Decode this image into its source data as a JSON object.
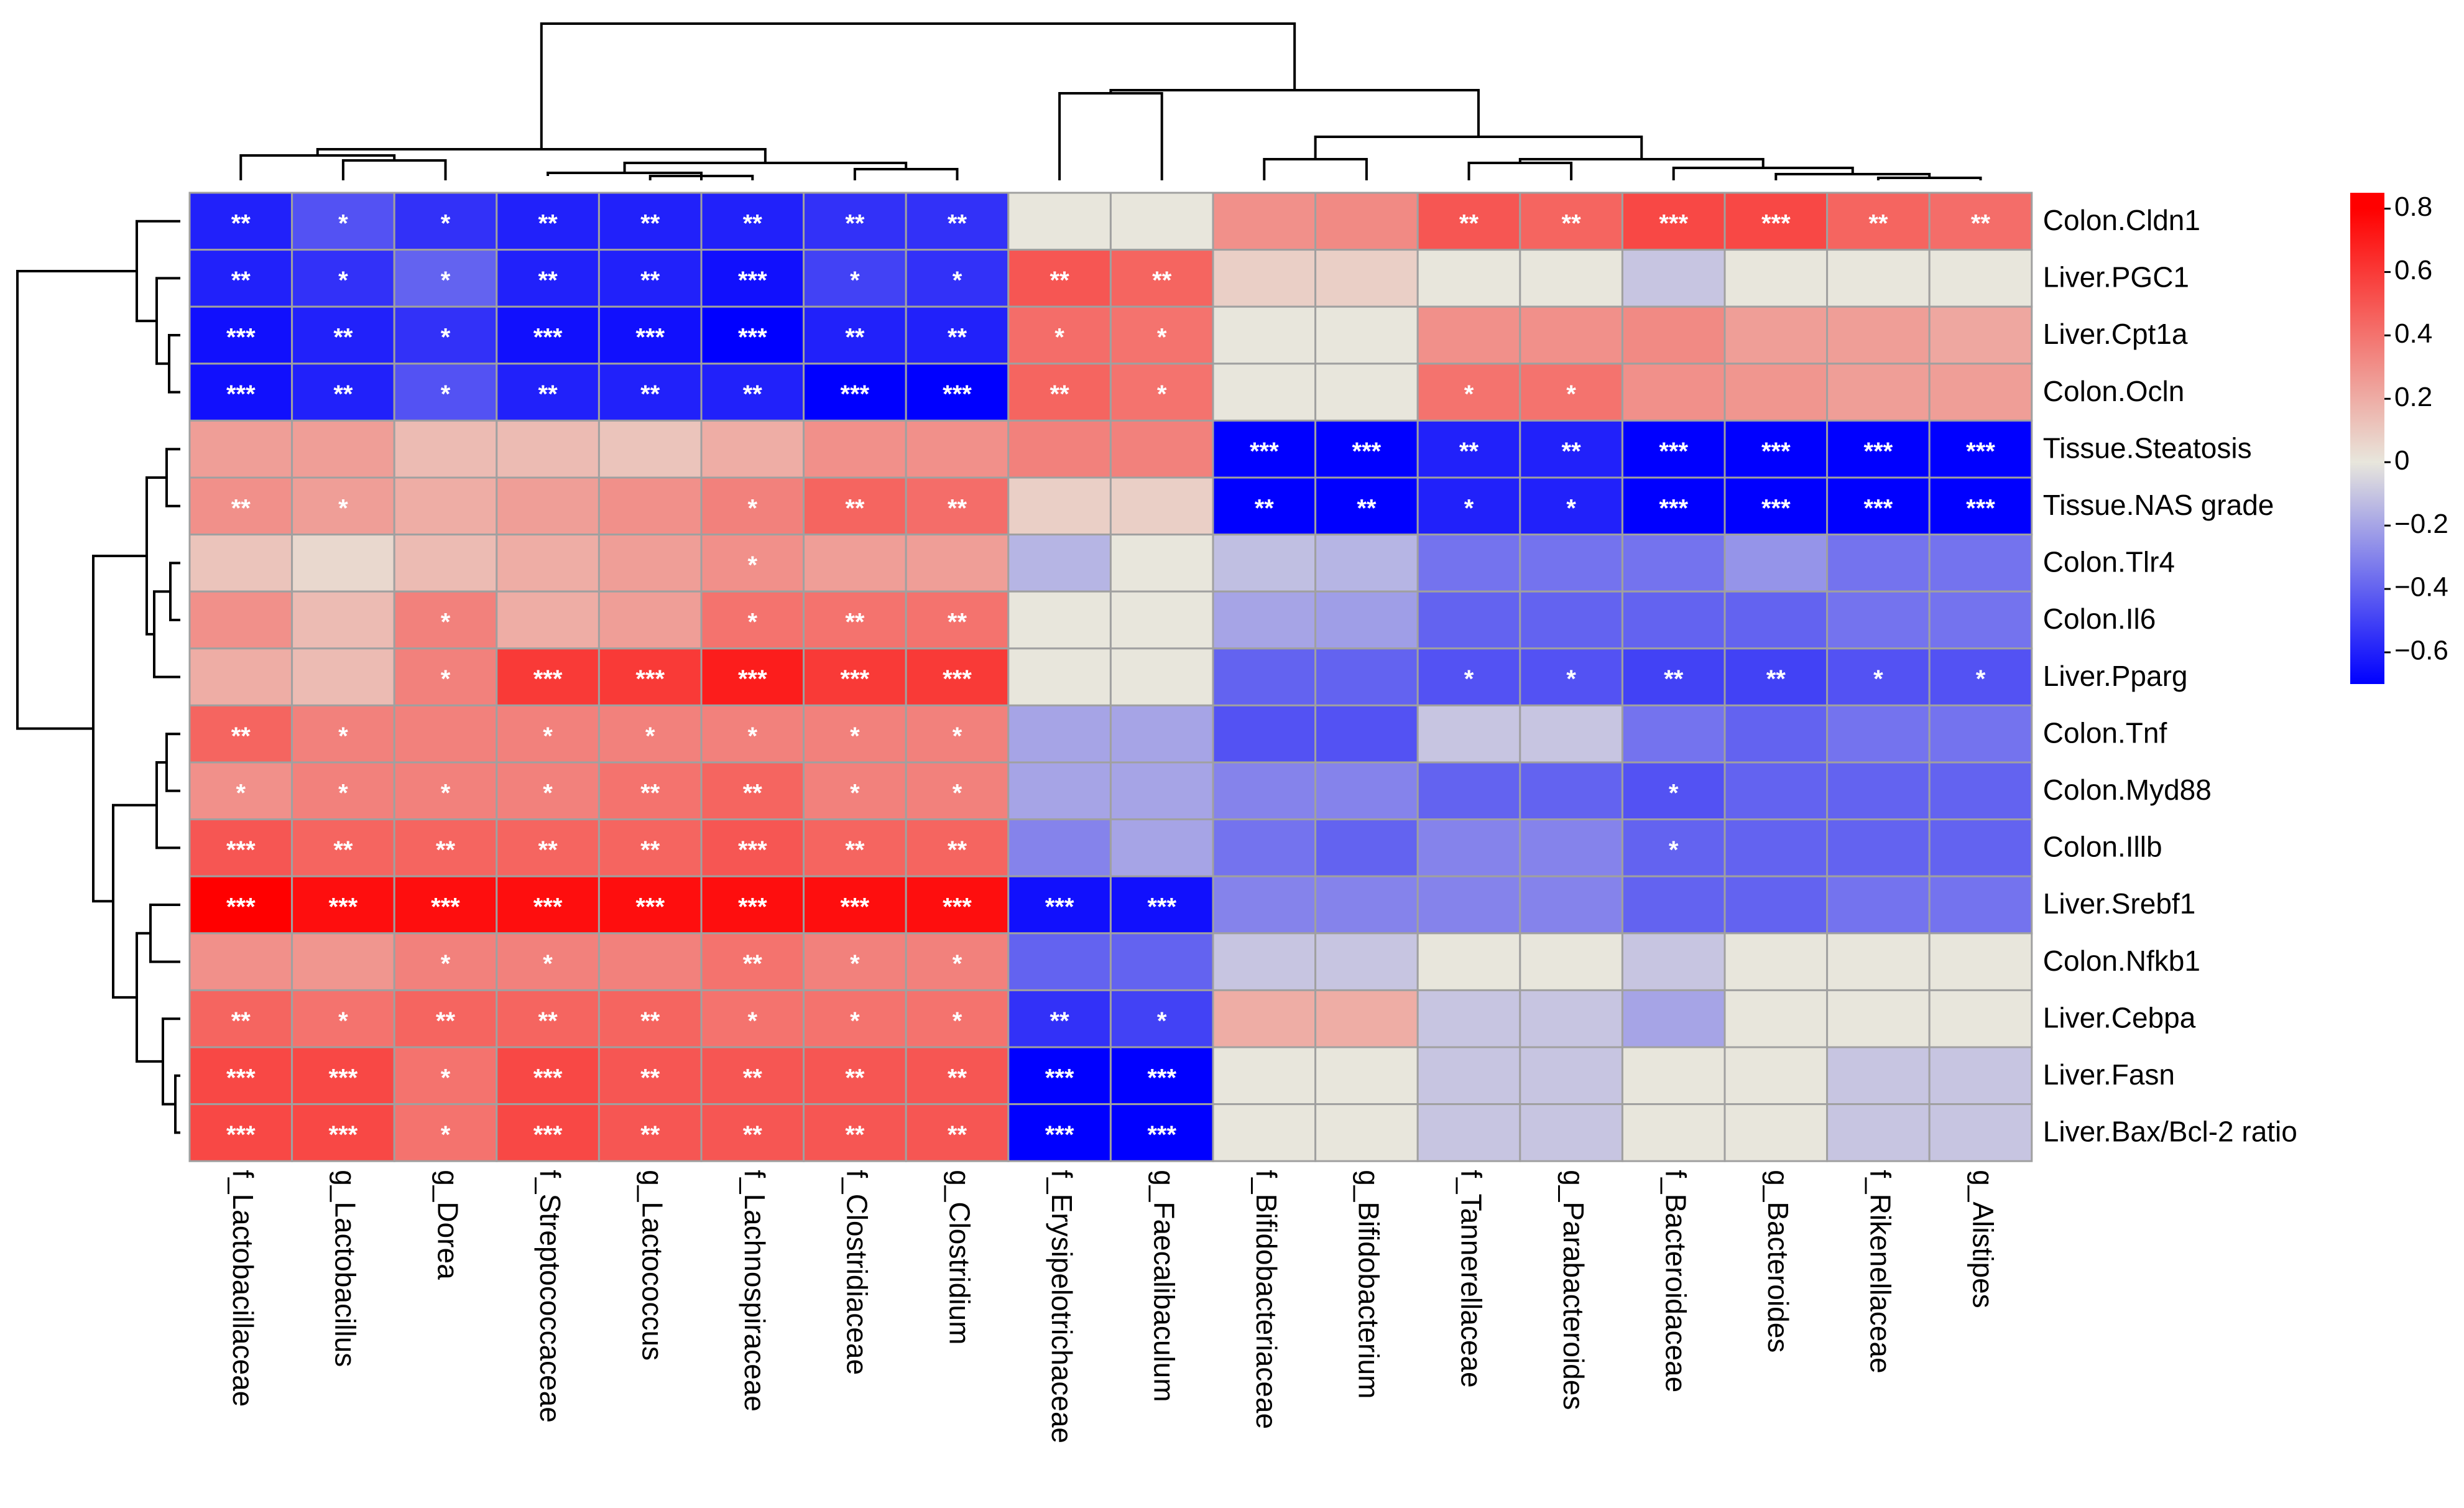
{
  "chart_data": {
    "type": "heatmap",
    "title": "",
    "rows": [
      "Colon.Cldn1",
      "Liver.PGC1",
      "Liver.Cpt1a",
      "Colon.Ocln",
      "Tissue.Steatosis",
      "Tissue.NAS grade",
      "Colon.Tlr4",
      "Colon.Il6",
      "Liver.Pparg",
      "Colon.Tnf",
      "Colon.Myd88",
      "Colon.Illb",
      "Liver.Srebf1",
      "Colon.Nfkb1",
      "Liver.Cebpa",
      "Liver.Fasn",
      "Liver.Bax/Bcl-2 ratio"
    ],
    "columns": [
      "f_Lactobacillaceae",
      "g_Lactobacillus",
      "g_Dorea",
      "f_Streptococcaceae",
      "g_Lactococcus",
      "f_Lachnospiraceae",
      "f_Clostridiaceae",
      "g_Clostridium",
      "f_Erysipelotrichaceae",
      "g_Faecalibaculum",
      "f_Bifidobacteriaceae",
      "g_Bifidobacterium",
      "f_Tannerellaceae",
      "g_Parabacteroides",
      "f_Bacteroidaceae",
      "g_Bacteroides",
      "f_Rikenellaceae",
      "g_Alistipes"
    ],
    "values": [
      [
        -0.6,
        -0.45,
        -0.55,
        -0.6,
        -0.6,
        -0.6,
        -0.55,
        -0.55,
        0,
        0,
        0.3,
        0.32,
        0.5,
        0.45,
        0.55,
        0.55,
        0.45,
        0.42
      ],
      [
        -0.6,
        -0.55,
        -0.4,
        -0.6,
        -0.6,
        -0.65,
        -0.5,
        -0.55,
        0.5,
        0.45,
        0.08,
        0.08,
        0,
        0,
        -0.1,
        0,
        0,
        0
      ],
      [
        -0.65,
        -0.6,
        -0.55,
        -0.65,
        -0.65,
        -0.7,
        -0.6,
        -0.6,
        0.42,
        0.4,
        0,
        0,
        0.3,
        0.3,
        0.32,
        0.25,
        0.25,
        0.22
      ],
      [
        -0.65,
        -0.6,
        -0.45,
        -0.6,
        -0.6,
        -0.6,
        -0.7,
        -0.7,
        0.45,
        0.4,
        0,
        0,
        0.4,
        0.4,
        0.3,
        0.28,
        0.25,
        0.25
      ],
      [
        0.25,
        0.25,
        0.15,
        0.15,
        0.12,
        0.2,
        0.3,
        0.3,
        0.35,
        0.35,
        -0.7,
        -0.7,
        -0.6,
        -0.6,
        -0.7,
        -0.7,
        -0.7,
        -0.7
      ],
      [
        0.3,
        0.25,
        0.2,
        0.25,
        0.3,
        0.35,
        0.45,
        0.42,
        0.08,
        0.08,
        -0.7,
        -0.7,
        -0.6,
        -0.6,
        -0.7,
        -0.7,
        -0.7,
        -0.7
      ],
      [
        0.12,
        0.05,
        0.15,
        0.2,
        0.25,
        0.3,
        0.25,
        0.25,
        -0.15,
        0,
        -0.12,
        -0.15,
        -0.35,
        -0.35,
        -0.35,
        -0.25,
        -0.35,
        -0.35
      ],
      [
        0.3,
        0.15,
        0.35,
        0.2,
        0.25,
        0.4,
        0.4,
        0.4,
        0,
        0,
        -0.2,
        -0.22,
        -0.4,
        -0.4,
        -0.4,
        -0.4,
        -0.35,
        -0.35
      ],
      [
        0.2,
        0.15,
        0.35,
        0.6,
        0.6,
        0.7,
        0.6,
        0.6,
        0,
        0,
        -0.4,
        -0.4,
        -0.45,
        -0.45,
        -0.5,
        -0.5,
        -0.45,
        -0.45
      ],
      [
        0.45,
        0.35,
        0.35,
        0.35,
        0.35,
        0.35,
        0.35,
        0.35,
        -0.2,
        -0.2,
        -0.45,
        -0.45,
        -0.1,
        -0.1,
        -0.35,
        -0.4,
        -0.35,
        -0.35
      ],
      [
        0.3,
        0.35,
        0.35,
        0.35,
        0.4,
        0.45,
        0.35,
        0.35,
        -0.2,
        -0.2,
        -0.3,
        -0.3,
        -0.4,
        -0.4,
        -0.45,
        -0.4,
        -0.4,
        -0.4
      ],
      [
        0.5,
        0.45,
        0.45,
        0.45,
        0.45,
        0.5,
        0.45,
        0.45,
        -0.3,
        -0.2,
        -0.35,
        -0.4,
        -0.3,
        -0.3,
        -0.4,
        -0.4,
        -0.4,
        -0.4
      ],
      [
        0.8,
        0.75,
        0.75,
        0.75,
        0.75,
        0.75,
        0.75,
        0.75,
        -0.65,
        -0.65,
        -0.3,
        -0.3,
        -0.3,
        -0.3,
        -0.4,
        -0.4,
        -0.35,
        -0.35
      ],
      [
        0.3,
        0.28,
        0.35,
        0.35,
        0.35,
        0.4,
        0.35,
        0.35,
        -0.4,
        -0.4,
        -0.1,
        -0.1,
        0,
        0,
        -0.1,
        0,
        0,
        0
      ],
      [
        0.45,
        0.4,
        0.45,
        0.45,
        0.45,
        0.4,
        0.4,
        0.4,
        -0.55,
        -0.5,
        0.2,
        0.2,
        -0.1,
        -0.1,
        -0.2,
        0,
        0,
        0
      ],
      [
        0.55,
        0.55,
        0.4,
        0.55,
        0.5,
        0.5,
        0.5,
        0.5,
        -0.7,
        -0.7,
        0,
        0,
        -0.1,
        -0.1,
        0,
        0,
        -0.1,
        -0.1
      ],
      [
        0.55,
        0.55,
        0.4,
        0.55,
        0.5,
        0.5,
        0.5,
        0.5,
        -0.7,
        -0.7,
        0,
        0,
        -0.1,
        -0.1,
        0,
        0,
        -0.1,
        -0.1
      ]
    ],
    "significance": [
      [
        "**",
        "*",
        "*",
        "**",
        "**",
        "**",
        "**",
        "**",
        "",
        "",
        "",
        "",
        "**",
        "**",
        "***",
        "***",
        "**",
        "**"
      ],
      [
        "**",
        "*",
        "*",
        "**",
        "**",
        "***",
        "*",
        "*",
        "**",
        "**",
        "",
        "",
        "",
        "",
        "",
        "",
        "",
        ""
      ],
      [
        "***",
        "**",
        "*",
        "***",
        "***",
        "***",
        "**",
        "**",
        "*",
        "*",
        "",
        "",
        "",
        "",
        "",
        "",
        "",
        ""
      ],
      [
        "***",
        "**",
        "*",
        "**",
        "**",
        "**",
        "***",
        "***",
        "**",
        "*",
        "",
        "",
        "*",
        "*",
        "",
        "",
        "",
        ""
      ],
      [
        "",
        "",
        "",
        "",
        "",
        "",
        "",
        "",
        "",
        "",
        "***",
        "***",
        "**",
        "**",
        "***",
        "***",
        "***",
        "***"
      ],
      [
        "**",
        "*",
        "",
        "",
        "",
        "*",
        "**",
        "**",
        "",
        "",
        "**",
        "**",
        "*",
        "*",
        "***",
        "***",
        "***",
        "***"
      ],
      [
        "",
        "",
        "",
        "",
        "",
        "*",
        "",
        "",
        "",
        "",
        "",
        "",
        "",
        "",
        "",
        "",
        "",
        ""
      ],
      [
        "",
        "",
        "*",
        "",
        "",
        "*",
        "**",
        "**",
        "",
        "",
        "",
        "",
        "",
        "",
        "",
        "",
        "",
        ""
      ],
      [
        "",
        "",
        "*",
        "***",
        "***",
        "***",
        "***",
        "***",
        "",
        "",
        "",
        "",
        "*",
        "*",
        "**",
        "**",
        "*",
        "*"
      ],
      [
        "**",
        "*",
        "",
        "*",
        "*",
        "*",
        "*",
        "*",
        "",
        "",
        "",
        "",
        "",
        "",
        "",
        "",
        "",
        ""
      ],
      [
        "*",
        "*",
        "*",
        "*",
        "**",
        "**",
        "*",
        "*",
        "",
        "",
        "",
        "",
        "",
        "",
        "*",
        "",
        "",
        ""
      ],
      [
        "***",
        "**",
        "**",
        "**",
        "**",
        "***",
        "**",
        "**",
        "",
        "",
        "",
        "",
        "",
        "",
        "*",
        "",
        "",
        ""
      ],
      [
        "***",
        "***",
        "***",
        "***",
        "***",
        "***",
        "***",
        "***",
        "***",
        "***",
        "",
        "",
        "",
        "",
        "",
        "",
        "",
        ""
      ],
      [
        "",
        "",
        "*",
        "*",
        "",
        "**",
        "*",
        "*",
        "",
        "",
        "",
        "",
        "",
        "",
        "",
        "",
        "",
        ""
      ],
      [
        "**",
        "*",
        "**",
        "**",
        "**",
        "*",
        "*",
        "*",
        "**",
        "*",
        "",
        "",
        "",
        "",
        "",
        "",
        "",
        ""
      ],
      [
        "***",
        "***",
        "*",
        "***",
        "**",
        "**",
        "**",
        "**",
        "***",
        "***",
        "",
        "",
        "",
        "",
        "",
        "",
        "",
        ""
      ],
      [
        "***",
        "***",
        "*",
        "***",
        "**",
        "**",
        "**",
        "**",
        "***",
        "***",
        "",
        "",
        "",
        "",
        "",
        "",
        "",
        ""
      ]
    ],
    "color_scale": {
      "min": -0.7,
      "max": 0.85,
      "stops": [
        {
          "value": -0.7,
          "color": "#0000ff"
        },
        {
          "value": 0,
          "color": "#e8e6dc"
        },
        {
          "value": 0.8,
          "color": "#ff0000"
        }
      ]
    },
    "legend_ticks": [
      "0.8",
      "0.6",
      "0.4",
      "0.2",
      "0",
      "-0.2",
      "-0.4",
      "-0.6"
    ],
    "legend_tick_values": [
      0.8,
      0.6,
      0.4,
      0.2,
      0,
      -0.2,
      -0.4,
      -0.6
    ],
    "row_dendrogram_order": "left",
    "column_dendrogram_order": "top"
  }
}
